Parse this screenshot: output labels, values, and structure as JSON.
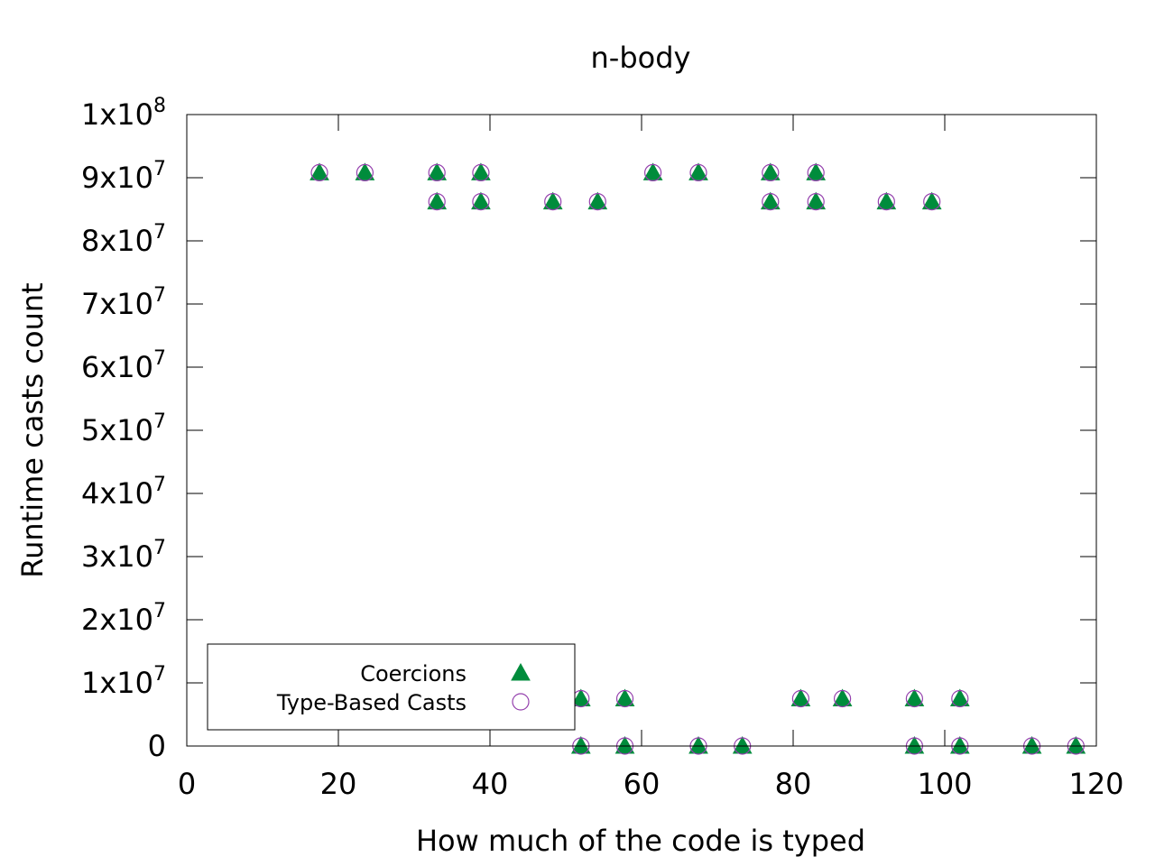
{
  "chart_data": {
    "type": "scatter",
    "title": "n-body",
    "xlabel": "How much of the code is typed",
    "ylabel": "Runtime casts count",
    "xlim": [
      0,
      120
    ],
    "ylim": [
      0,
      100000000
    ],
    "x_ticks": [
      0,
      20,
      40,
      60,
      80,
      100,
      120
    ],
    "y_ticks": [
      {
        "value": 0,
        "base": "0",
        "exp": ""
      },
      {
        "value": 10000000,
        "base": "1x10",
        "exp": "7"
      },
      {
        "value": 20000000,
        "base": "2x10",
        "exp": "7"
      },
      {
        "value": 30000000,
        "base": "3x10",
        "exp": "7"
      },
      {
        "value": 40000000,
        "base": "4x10",
        "exp": "7"
      },
      {
        "value": 50000000,
        "base": "5x10",
        "exp": "7"
      },
      {
        "value": 60000000,
        "base": "6x10",
        "exp": "7"
      },
      {
        "value": 70000000,
        "base": "7x10",
        "exp": "7"
      },
      {
        "value": 80000000,
        "base": "8x10",
        "exp": "7"
      },
      {
        "value": 90000000,
        "base": "9x10",
        "exp": "7"
      },
      {
        "value": 100000000,
        "base": "1x10",
        "exp": "8"
      }
    ],
    "grid": false,
    "legend_position": "bottom-left",
    "colors": {
      "coercions": "#008c3c",
      "type_based_casts": "#9440ad"
    },
    "series": [
      {
        "name": "Coercions",
        "marker": "filled-triangle",
        "points": [
          [
            17.5,
            90800000
          ],
          [
            23.5,
            90800000
          ],
          [
            33,
            90800000
          ],
          [
            38.8,
            90800000
          ],
          [
            61.5,
            90800000
          ],
          [
            67.5,
            90800000
          ],
          [
            77,
            90800000
          ],
          [
            83,
            90800000
          ],
          [
            33,
            86200000
          ],
          [
            38.8,
            86200000
          ],
          [
            48.3,
            86200000
          ],
          [
            54.2,
            86200000
          ],
          [
            77,
            86200000
          ],
          [
            83,
            86200000
          ],
          [
            92.3,
            86200000
          ],
          [
            98.3,
            86200000
          ],
          [
            52,
            7500000
          ],
          [
            57.8,
            7500000
          ],
          [
            81,
            7500000
          ],
          [
            86.5,
            7500000
          ],
          [
            96,
            7500000
          ],
          [
            102,
            7500000
          ],
          [
            52,
            0
          ],
          [
            57.8,
            0
          ],
          [
            67.5,
            0
          ],
          [
            73.3,
            0
          ],
          [
            96,
            0
          ],
          [
            102,
            0
          ],
          [
            111.5,
            0
          ],
          [
            117.3,
            0
          ]
        ]
      },
      {
        "name": "Type-Based Casts",
        "marker": "open-circle",
        "points": [
          [
            17.5,
            90800000
          ],
          [
            23.5,
            90800000
          ],
          [
            33,
            90800000
          ],
          [
            38.8,
            90800000
          ],
          [
            61.5,
            90800000
          ],
          [
            67.5,
            90800000
          ],
          [
            77,
            90800000
          ],
          [
            83,
            90800000
          ],
          [
            33,
            86200000
          ],
          [
            38.8,
            86200000
          ],
          [
            48.3,
            86200000
          ],
          [
            54.2,
            86200000
          ],
          [
            77,
            86200000
          ],
          [
            83,
            86200000
          ],
          [
            92.3,
            86200000
          ],
          [
            98.3,
            86200000
          ],
          [
            52,
            7500000
          ],
          [
            57.8,
            7500000
          ],
          [
            81,
            7500000
          ],
          [
            86.5,
            7500000
          ],
          [
            96,
            7500000
          ],
          [
            102,
            7500000
          ],
          [
            52,
            0
          ],
          [
            57.8,
            0
          ],
          [
            67.5,
            0
          ],
          [
            73.3,
            0
          ],
          [
            96,
            0
          ],
          [
            102,
            0
          ],
          [
            111.5,
            0
          ],
          [
            117.3,
            0
          ]
        ]
      }
    ]
  }
}
